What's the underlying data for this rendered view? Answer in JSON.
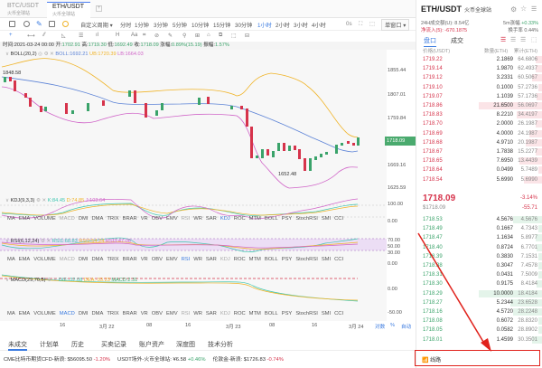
{
  "tabs": [
    {
      "pair": "BTC/USDT",
      "exchange": "火币全球站",
      "active": false
    },
    {
      "pair": "ETH/USDT",
      "exchange": "火币全球站",
      "active": true
    }
  ],
  "toolbar": {
    "period_dropdown": "自定义周期 ▾",
    "periods": [
      "分时",
      "1分钟",
      "3分钟",
      "5分钟",
      "10分钟",
      "15分钟",
      "30分钟",
      "1小时",
      "2小时",
      "3小时",
      "4小时"
    ],
    "selected_period": "1小时",
    "timer": "0s",
    "window_mode": "单窗口 ▾"
  },
  "drawtools": [
    "+",
    "⟷",
    "⁄⁄",
    "◺",
    "☰",
    "ıl",
    "H",
    "Aa",
    "⌗",
    "⊘",
    "✎",
    "⚲",
    "⊞",
    "⌂",
    "⧉",
    "⬚",
    "⊟"
  ],
  "info": {
    "time_label": "时间:",
    "time": "2021-03-24 00:00",
    "open_label": "开:",
    "open": "1702.91",
    "high_label": "高:",
    "high": "1719.30",
    "low_label": "低:",
    "low": "1692.49",
    "close_label": "收:",
    "close": "1718.09",
    "change_label": "涨幅:",
    "change": "0.89%(15.19)",
    "amplitude_label": "振幅:",
    "amplitude": "1.57%"
  },
  "boll": {
    "name": "BOLL(20,2)",
    "mid": "BOLL:1692.21",
    "ub": "UB:1720.39",
    "lb": "LB:1664.03",
    "high_mark": "1848.58",
    "low_mark": "1652.48"
  },
  "kdj": {
    "name": "KDJ(9,3,3)",
    "k": "K:84.45",
    "d": "D:74.85",
    "j": "J:103.64"
  },
  "rsi": {
    "name": "RSI(6,12,24)",
    "rsi1": "RSI1:68.83",
    "rsi2": "RSI2:54.24",
    "rsi3": "RSI3:47.06"
  },
  "macd": {
    "name": "MACD(29,70,5)",
    "dif": "DIF:-32.08",
    "dea": "DEA:-33.23",
    "macd": "MACD:2.31"
  },
  "indicators": [
    "MA",
    "EMA",
    "VOLUME",
    "MACD",
    "DMI",
    "DMA",
    "TRIX",
    "BRAR",
    "VR",
    "OBV",
    "EMV",
    "RSI",
    "WR",
    "SAR",
    "KDJ",
    "ROC",
    "MTM",
    "BOLL",
    "PSY",
    "StochRSI",
    "SMI",
    "CCI"
  ],
  "yaxis": {
    "main": [
      "1855.44",
      "1807.01",
      "1759.84",
      "1669.16",
      "1625.59"
    ],
    "current_price": "1718.09",
    "kdj": [
      "100.00",
      "0.00"
    ],
    "rsi": [
      "70.00",
      "50.00",
      "30.00",
      "0.00"
    ],
    "macd": [
      "0.00",
      "-50.00"
    ]
  },
  "xaxis": {
    "labels": [
      "16",
      "3月 22",
      "08",
      "16",
      "3月 23",
      "08",
      "16",
      "3月 24"
    ],
    "log": "对数",
    "pct": "%",
    "auto": "自动"
  },
  "bottom_tabs": [
    "未成交",
    "计划单",
    "历史",
    "买卖记录",
    "账户资产",
    "深度图",
    "技术分析"
  ],
  "ticker": [
    {
      "label": "CME比特币期货CFD-新浪:",
      "value": "$56095.50",
      "change": "-1.20%",
      "dir": "down"
    },
    {
      "label": "USDT场外-火币全球站:",
      "value": "¥6.58",
      "change": "+0.46%",
      "dir": "up"
    },
    {
      "label": "伦敦金-新浪:",
      "value": "$1726.83",
      "change": "-0.74%",
      "dir": "down"
    }
  ],
  "right": {
    "pair": "ETH/USDT",
    "exchange": "火币全球站",
    "vol_label": "24H成交额(U):",
    "vol": "8.54亿",
    "inflow_label": "净流入(5):",
    "inflow": "-670.1875",
    "change5m_label": "5m涨幅",
    "change5m": "+0.33%",
    "turnover_label": "换手率",
    "turnover": "0.44%",
    "tab_book": "盘口",
    "tab_trades": "成交",
    "col_price": "价格(USDT)",
    "col_amount": "数量(ETH)",
    "col_total": "累计(ETH)",
    "last_price": "1718.09",
    "last_usd": "$1718.09",
    "pct": "-3.14%",
    "delta": "-55.71",
    "asks": [
      [
        "1719.22",
        "2.1869",
        "64.6806",
        0.1
      ],
      [
        "1719.14",
        "1.9870",
        "62.4937",
        0.1
      ],
      [
        "1719.12",
        "3.2331",
        "60.5067",
        0.15
      ],
      [
        "1719.10",
        "0.1000",
        "57.2736",
        0.05
      ],
      [
        "1719.07",
        "1.1039",
        "57.1736",
        0.08
      ],
      [
        "1718.86",
        "21.6500",
        "56.0697",
        1.0
      ],
      [
        "1718.83",
        "8.2210",
        "34.4197",
        0.4
      ],
      [
        "1718.70",
        "2.0000",
        "26.1987",
        0.1
      ],
      [
        "1718.69",
        "4.0000",
        "24.1987",
        0.2
      ],
      [
        "1718.68",
        "4.9710",
        "20.1987",
        0.25
      ],
      [
        "1718.67",
        "1.7838",
        "15.2277",
        0.1
      ],
      [
        "1718.65",
        "7.6950",
        "13.4439",
        0.35
      ],
      [
        "1718.64",
        "0.0499",
        "5.7489",
        0.05
      ],
      [
        "1718.54",
        "5.6990",
        "5.6990",
        0.28
      ]
    ],
    "bids": [
      [
        "1718.53",
        "4.5676",
        "4.5676",
        0.45
      ],
      [
        "1718.49",
        "0.1667",
        "4.7343",
        0.05
      ],
      [
        "1718.47",
        "1.1634",
        "5.8977",
        0.1
      ],
      [
        "1718.40",
        "0.8724",
        "6.7701",
        0.08
      ],
      [
        "1718.39",
        "0.3830",
        "7.1531",
        0.05
      ],
      [
        "1718.38",
        "0.3047",
        "7.4578",
        0.05
      ],
      [
        "1718.31",
        "0.0431",
        "7.5009",
        0.05
      ],
      [
        "1718.30",
        "0.9175",
        "8.4184",
        0.08
      ],
      [
        "1718.29",
        "10.0000",
        "18.4184",
        1.0
      ],
      [
        "1718.27",
        "5.2344",
        "23.6528",
        0.5
      ],
      [
        "1718.16",
        "4.5720",
        "28.2248",
        0.45
      ],
      [
        "1718.08",
        "0.6072",
        "28.8320",
        0.06
      ],
      [
        "1718.05",
        "0.0582",
        "28.8902",
        0.05
      ],
      [
        "1718.01",
        "1.4599",
        "30.3501",
        0.15
      ]
    ],
    "status": "线路"
  },
  "colors": {
    "up": "#3aa36a",
    "down": "#d6334b",
    "accent": "#3b7be0",
    "ub": "#f0b429",
    "mid": "#5b82d6",
    "lb": "#d065c8"
  }
}
